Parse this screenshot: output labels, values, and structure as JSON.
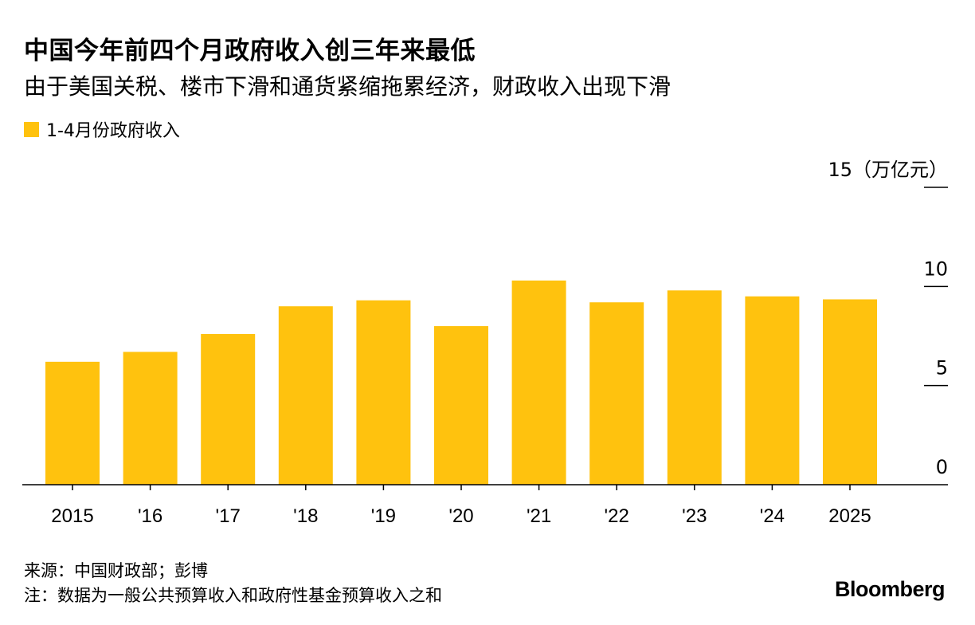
{
  "title": "中国今年前四个月政府收入创三年来最低",
  "subtitle": "由于美国关税、楼市下滑和通货紧缩拖累经济，财政收入出现下滑",
  "source": "来源：中国财政部；彭博",
  "note": "注：数据为一般公共预算收入和政府性基金预算收入之和",
  "brand": "Bloomberg",
  "colors": {
    "bar": "#FFC20E",
    "axis": "#000000",
    "text": "#000000"
  },
  "chart_data": {
    "type": "bar",
    "categories": [
      "2015",
      "'16",
      "'17",
      "'18",
      "'19",
      "'20",
      "'21",
      "'22",
      "'23",
      "'24",
      "2025"
    ],
    "series": [
      {
        "name": "1-4月份政府收入",
        "values": [
          6.2,
          6.7,
          7.6,
          9.0,
          9.3,
          8.0,
          10.3,
          9.2,
          9.8,
          9.5,
          9.35
        ]
      }
    ],
    "y_unit_label": "15（万亿元）",
    "yticks": [
      {
        "value": 0,
        "label": "0"
      },
      {
        "value": 5,
        "label": "5"
      },
      {
        "value": 10,
        "label": "10"
      },
      {
        "value": 15,
        "label": "15（万亿元）"
      }
    ],
    "ylim": [
      0,
      15
    ],
    "y_axis_position": "right",
    "legend_position": "top-left",
    "grid": false
  }
}
